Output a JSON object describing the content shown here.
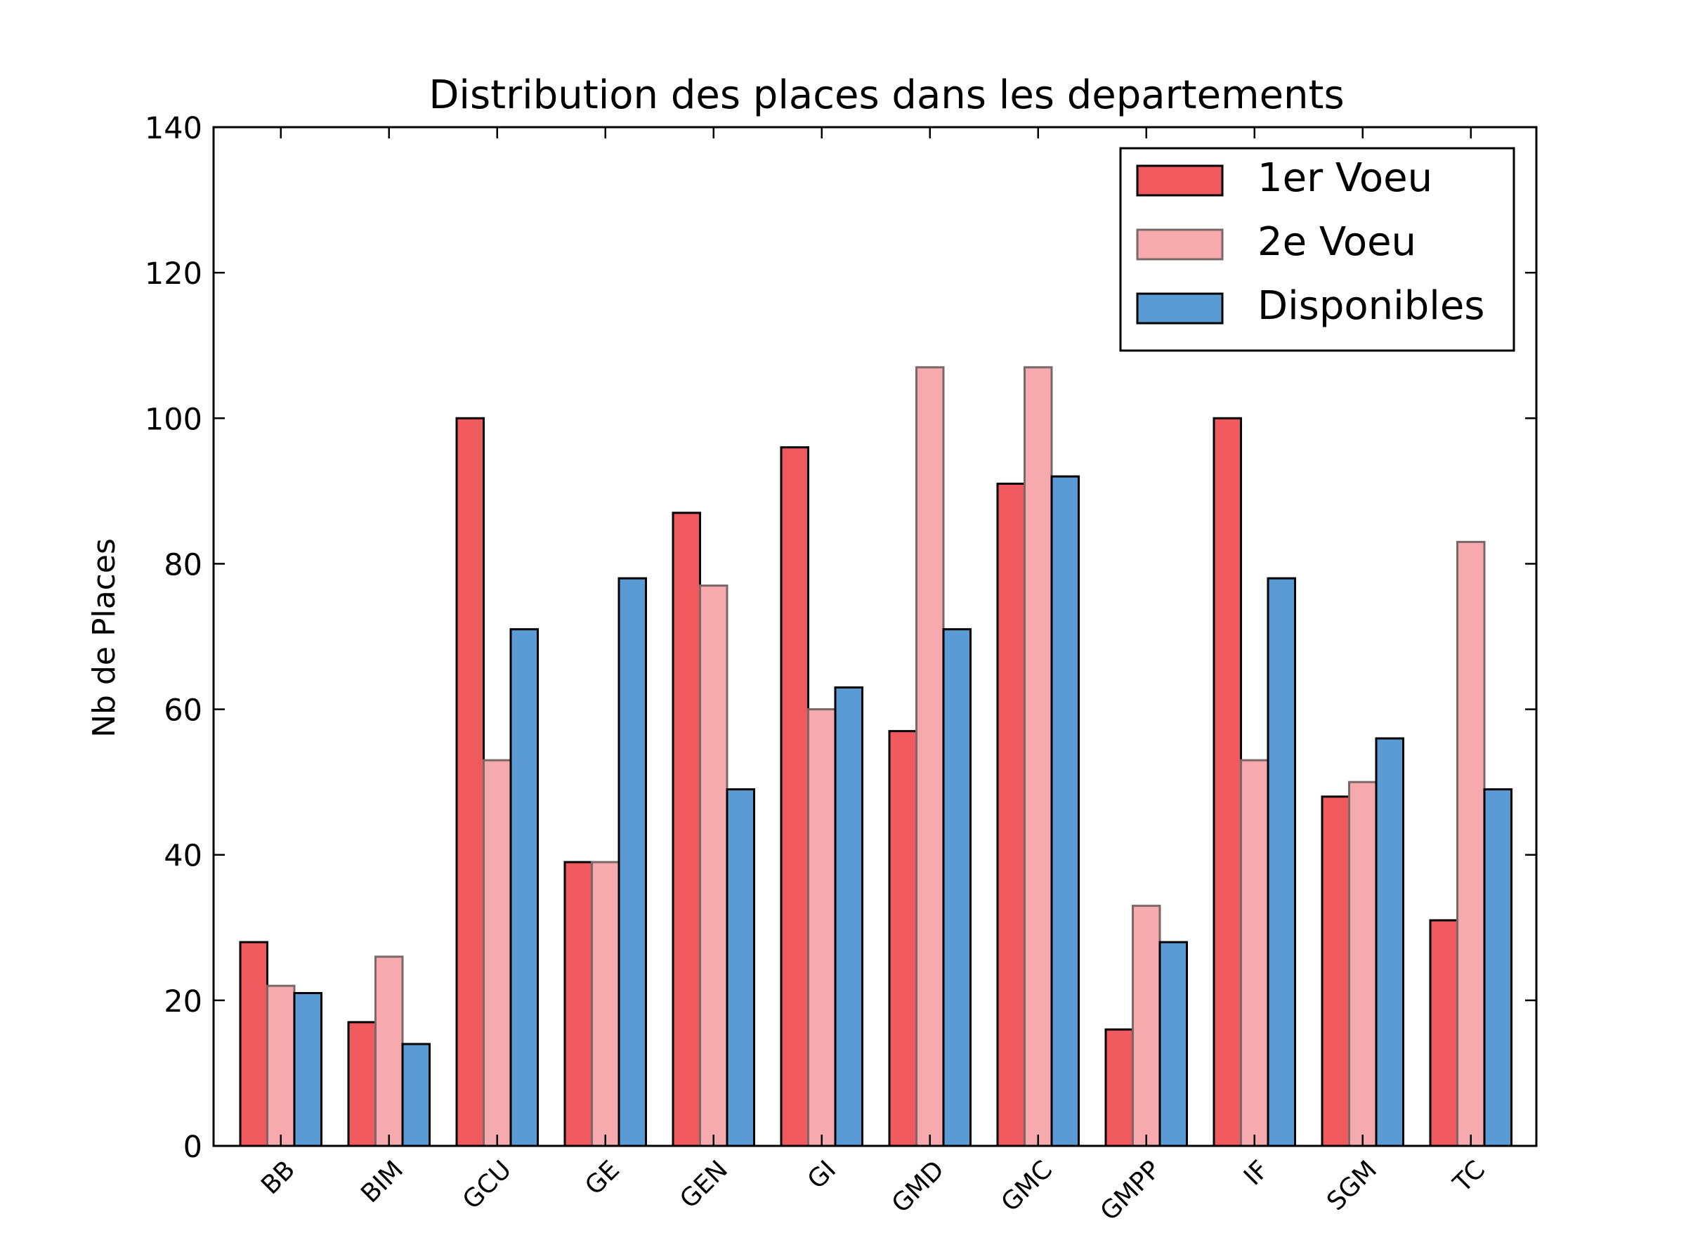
{
  "chart_data": {
    "type": "bar",
    "title": "Distribution des places dans les departements",
    "xlabel": "",
    "ylabel": "Nb de Places",
    "ylim": [
      0,
      140
    ],
    "yticks": [
      0,
      20,
      40,
      60,
      80,
      100,
      120,
      140
    ],
    "grid": false,
    "legend_position": "top-right",
    "categories": [
      "BB",
      "BIM",
      "GCU",
      "GE",
      "GEN",
      "GI",
      "GMD",
      "GMC",
      "GMPP",
      "IF",
      "SGM",
      "TC"
    ],
    "series": [
      {
        "name": "1er Voeu",
        "color": "#F0595E",
        "edge": "#000000",
        "values": [
          28,
          17,
          100,
          39,
          87,
          96,
          57,
          91,
          16,
          100,
          48,
          31
        ]
      },
      {
        "name": "2e Voeu",
        "color": "#F7AAAD",
        "edge": "#7A6768",
        "values": [
          22,
          26,
          53,
          39,
          77,
          60,
          107,
          107,
          33,
          53,
          50,
          83
        ]
      },
      {
        "name": "Disponibles",
        "color": "#5B9BD5",
        "edge": "#000000",
        "values": [
          21,
          14,
          71,
          78,
          49,
          63,
          71,
          92,
          28,
          78,
          56,
          49
        ]
      }
    ]
  }
}
